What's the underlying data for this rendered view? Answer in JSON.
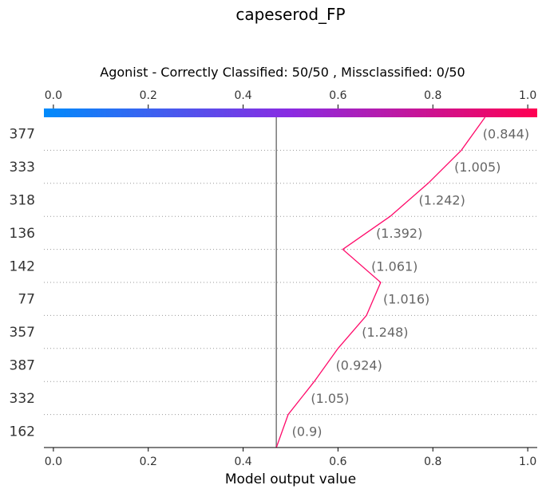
{
  "chart_data": {
    "type": "decision_plot",
    "title": "capeserod_FP",
    "subtitle": "Agonist - Correctly Classified: 50/50 , Missclassified: 0/50",
    "xlabel": "Model output value",
    "xlim": [
      -0.02,
      1.02
    ],
    "xticks": [
      0.0,
      0.2,
      0.4,
      0.6,
      0.8,
      1.0
    ],
    "xtick_labels": [
      "0.0",
      "0.2",
      "0.4",
      "0.6",
      "0.8",
      "1.0"
    ],
    "base_value": 0.47,
    "colorbar": {
      "from_color": "#008bfb",
      "mid_color": "#8a2be2",
      "to_color": "#ff0052"
    },
    "line_color": "#ff0a6a",
    "features": [
      {
        "name": "377",
        "annotation": "(0.844)"
      },
      {
        "name": "333",
        "annotation": "(1.005)"
      },
      {
        "name": "318",
        "annotation": "(1.242)"
      },
      {
        "name": "136",
        "annotation": "(1.392)"
      },
      {
        "name": "142",
        "annotation": "(1.061)"
      },
      {
        "name": "77",
        "annotation": "(1.016)"
      },
      {
        "name": "357",
        "annotation": "(1.248)"
      },
      {
        "name": "387",
        "annotation": "(0.924)"
      },
      {
        "name": "332",
        "annotation": "(1.05)"
      },
      {
        "name": "162",
        "annotation": "(0.9)"
      }
    ],
    "path_values": [
      0.47,
      0.495,
      0.55,
      0.6,
      0.66,
      0.69,
      0.61,
      0.71,
      0.79,
      0.86,
      0.91
    ]
  }
}
